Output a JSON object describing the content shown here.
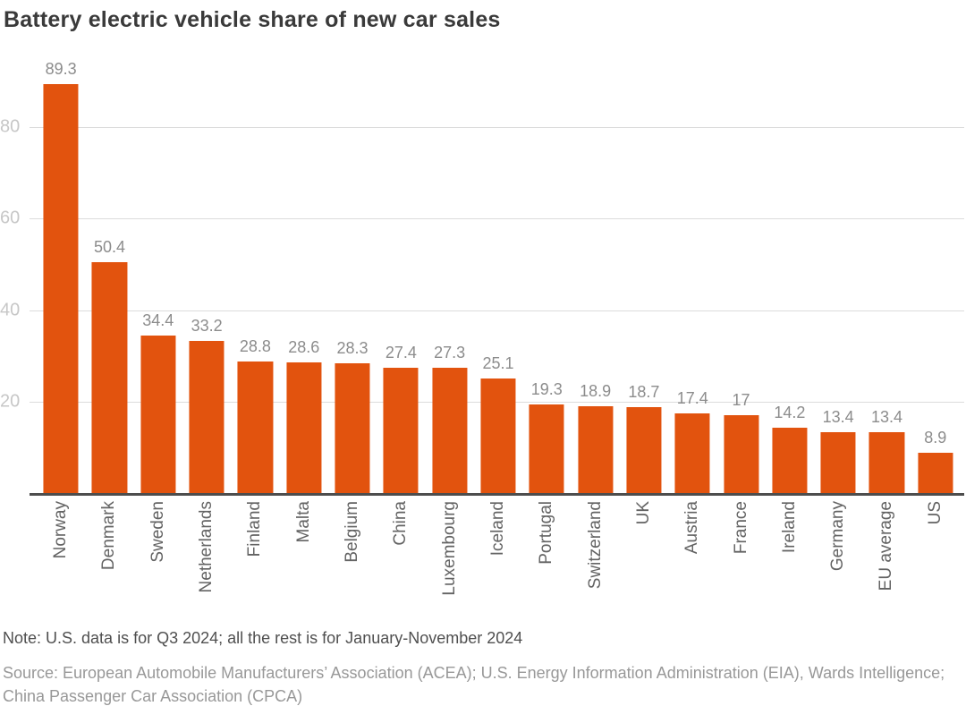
{
  "chart": {
    "title": "Battery electric vehicle share of new car sales",
    "note": "Note: U.S. data is for Q3 2024; all the rest is for January-November 2024",
    "source": "Source: European Automobile Manufacturers’ Association (ACEA); U.S. Energy Information Administration (EIA), Wards Intelligence; China Passenger Car Association (CPCA)"
  },
  "chart_data": {
    "type": "bar",
    "title": "Battery electric vehicle share of new car sales",
    "categories": [
      "Norway",
      "Denmark",
      "Sweden",
      "Netherlands",
      "Finland",
      "Malta",
      "Belgium",
      "China",
      "Luxembourg",
      "Iceland",
      "Portugal",
      "Switzerland",
      "UK",
      "Austria",
      "France",
      "Ireland",
      "Germany",
      "EU average",
      "US"
    ],
    "values": [
      89.3,
      50.4,
      34.4,
      33.2,
      28.8,
      28.6,
      28.3,
      27.4,
      27.3,
      25.1,
      19.3,
      18.9,
      18.7,
      17.4,
      17,
      14.2,
      13.4,
      13.4,
      8.9
    ],
    "value_labels": [
      "89.3",
      "50.4",
      "34.4",
      "33.2",
      "28.8",
      "28.6",
      "28.3",
      "27.4",
      "27.3",
      "25.1",
      "19.3",
      "18.9",
      "18.7",
      "17.4",
      "17",
      "14.2",
      "13.4",
      "13.4",
      "8.9"
    ],
    "yticks": [
      20,
      40,
      60,
      80
    ],
    "ytick_labels": [
      "20",
      "40",
      "60",
      "80"
    ],
    "ylim": [
      0,
      96
    ],
    "xlabel": "",
    "ylabel": "",
    "grid": "horizontal-behind-bars",
    "legend": "none"
  },
  "colors": {
    "bar": "#e2530e",
    "title": "#3a3a3a",
    "value_label": "#8c8c8c",
    "y_tick_label": "#c7c7c7",
    "gridline": "#dcdcdc",
    "axis_line": "#4d4d4d",
    "x_label": "#636363",
    "note": "#4f4f4f",
    "source": "#989898",
    "background": "#ffffff"
  }
}
